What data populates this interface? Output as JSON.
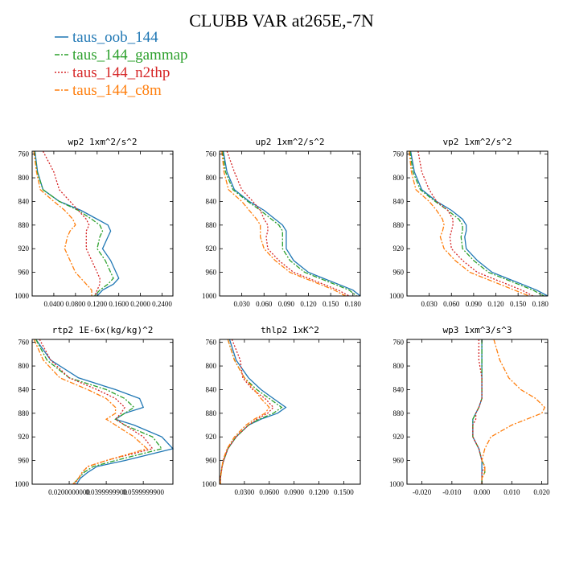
{
  "figure": {
    "title": "CLUBB VAR at265E,-7N",
    "legend": [
      {
        "name": "taus_oob_144",
        "color": "#1f77b4",
        "dash": ""
      },
      {
        "name": "taus_144_gammap",
        "color": "#2ca02c",
        "dash": "6,2,2,2"
      },
      {
        "name": "taus_144_n2thp",
        "color": "#d62728",
        "dash": "2,2"
      },
      {
        "name": "taus_144_c8m",
        "color": "#ff7f0e",
        "dash": "6,2,2,2"
      }
    ]
  },
  "chart_data": [
    {
      "type": "line",
      "title": "wp2  1xm^2/s^2",
      "xlim": [
        0.0,
        0.26
      ],
      "ylim": [
        755,
        1000
      ],
      "y_inverted": true,
      "yticks": [
        760,
        800,
        840,
        880,
        920,
        960,
        1000
      ],
      "xticks": [
        0.04,
        0.08,
        0.12,
        0.16,
        0.2,
        0.24
      ],
      "xtick_labels": [
        "0.0400",
        "0.0800",
        "0.1200",
        "0.1600",
        "0.2000",
        "0.2400"
      ],
      "y": [
        755,
        790,
        820,
        840,
        855,
        870,
        880,
        890,
        900,
        920,
        940,
        960,
        970,
        980,
        990,
        1000
      ],
      "series": [
        {
          "name": "taus_oob_144",
          "values": [
            0.005,
            0.01,
            0.02,
            0.05,
            0.09,
            0.12,
            0.14,
            0.145,
            0.14,
            0.13,
            0.145,
            0.155,
            0.16,
            0.15,
            0.13,
            0.12
          ]
        },
        {
          "name": "taus_144_gammap",
          "values": [
            0.004,
            0.009,
            0.02,
            0.05,
            0.085,
            0.11,
            0.125,
            0.13,
            0.125,
            0.12,
            0.135,
            0.145,
            0.15,
            0.14,
            0.125,
            0.115
          ]
        },
        {
          "name": "taus_144_n2thp",
          "values": [
            0.02,
            0.04,
            0.05,
            0.07,
            0.085,
            0.1,
            0.105,
            0.1,
            0.1,
            0.1,
            0.11,
            0.12,
            0.125,
            0.125,
            0.12,
            0.115
          ]
        },
        {
          "name": "taus_144_c8m",
          "values": [
            0.003,
            0.008,
            0.015,
            0.04,
            0.06,
            0.075,
            0.08,
            0.07,
            0.065,
            0.06,
            0.07,
            0.08,
            0.09,
            0.1,
            0.11,
            0.11
          ]
        }
      ]
    },
    {
      "type": "line",
      "title": "up2  1xm^2/s^2",
      "xlim": [
        0.0,
        0.19
      ],
      "ylim": [
        755,
        1000
      ],
      "y_inverted": true,
      "yticks": [
        760,
        800,
        840,
        880,
        920,
        960,
        1000
      ],
      "xticks": [
        0.03,
        0.06,
        0.09,
        0.12,
        0.15,
        0.18
      ],
      "xtick_labels": [
        "0.030",
        "0.060",
        "0.090",
        "0.120",
        "0.150",
        "0.180"
      ],
      "y": [
        755,
        790,
        820,
        840,
        855,
        870,
        880,
        890,
        900,
        920,
        940,
        960,
        970,
        980,
        990,
        1000
      ],
      "series": [
        {
          "name": "taus_oob_144",
          "values": [
            0.005,
            0.01,
            0.02,
            0.04,
            0.06,
            0.075,
            0.085,
            0.09,
            0.09,
            0.09,
            0.1,
            0.12,
            0.14,
            0.16,
            0.18,
            0.19
          ]
        },
        {
          "name": "taus_144_gammap",
          "values": [
            0.004,
            0.008,
            0.018,
            0.038,
            0.055,
            0.07,
            0.08,
            0.085,
            0.085,
            0.085,
            0.095,
            0.115,
            0.135,
            0.155,
            0.175,
            0.185
          ]
        },
        {
          "name": "taus_144_n2thp",
          "values": [
            0.01,
            0.02,
            0.03,
            0.045,
            0.055,
            0.06,
            0.065,
            0.065,
            0.063,
            0.065,
            0.08,
            0.1,
            0.12,
            0.14,
            0.16,
            0.175
          ]
        },
        {
          "name": "taus_144_c8m",
          "values": [
            0.003,
            0.006,
            0.012,
            0.03,
            0.04,
            0.05,
            0.055,
            0.055,
            0.055,
            0.06,
            0.075,
            0.095,
            0.115,
            0.135,
            0.155,
            0.17
          ]
        }
      ]
    },
    {
      "type": "line",
      "title": "vp2  1xm^2/s^2",
      "xlim": [
        0.0,
        0.19
      ],
      "ylim": [
        755,
        1000
      ],
      "y_inverted": true,
      "yticks": [
        760,
        800,
        840,
        880,
        920,
        960,
        1000
      ],
      "xticks": [
        0.03,
        0.06,
        0.09,
        0.12,
        0.15,
        0.18
      ],
      "xtick_labels": [
        "0.030",
        "0.060",
        "0.090",
        "0.120",
        "0.150",
        "0.180"
      ],
      "y": [
        755,
        790,
        820,
        840,
        855,
        870,
        880,
        890,
        900,
        920,
        940,
        960,
        970,
        980,
        990,
        1000
      ],
      "series": [
        {
          "name": "taus_oob_144",
          "values": [
            0.005,
            0.01,
            0.02,
            0.04,
            0.06,
            0.075,
            0.08,
            0.08,
            0.078,
            0.08,
            0.095,
            0.115,
            0.135,
            0.155,
            0.175,
            0.19
          ]
        },
        {
          "name": "taus_144_gammap",
          "values": [
            0.004,
            0.008,
            0.018,
            0.038,
            0.055,
            0.07,
            0.075,
            0.075,
            0.073,
            0.075,
            0.09,
            0.11,
            0.13,
            0.15,
            0.17,
            0.185
          ]
        },
        {
          "name": "taus_144_n2thp",
          "values": [
            0.015,
            0.02,
            0.03,
            0.04,
            0.055,
            0.062,
            0.062,
            0.06,
            0.058,
            0.06,
            0.075,
            0.095,
            0.115,
            0.135,
            0.155,
            0.17
          ]
        },
        {
          "name": "taus_144_c8m",
          "values": [
            0.003,
            0.006,
            0.012,
            0.03,
            0.04,
            0.048,
            0.05,
            0.048,
            0.045,
            0.05,
            0.065,
            0.085,
            0.105,
            0.125,
            0.145,
            0.165
          ]
        }
      ]
    },
    {
      "type": "line",
      "title": "rtp2  1E-6x(kg/kg)^2",
      "xlim": [
        0.0,
        0.076
      ],
      "ylim": [
        755,
        1000
      ],
      "y_inverted": true,
      "yticks": [
        760,
        800,
        840,
        880,
        920,
        960,
        1000
      ],
      "xticks": [
        0.02,
        0.04,
        0.06
      ],
      "xtick_labels": [
        "0.0200000000",
        "0.0399999900",
        "0.0599999900"
      ],
      "y": [
        755,
        790,
        820,
        840,
        855,
        870,
        880,
        890,
        900,
        920,
        940,
        960,
        970,
        980,
        990,
        1000
      ],
      "series": [
        {
          "name": "taus_oob_144",
          "values": [
            0.002,
            0.01,
            0.025,
            0.045,
            0.058,
            0.06,
            0.05,
            0.045,
            0.055,
            0.07,
            0.076,
            0.05,
            0.035,
            0.03,
            0.026,
            0.024
          ]
        },
        {
          "name": "taus_144_gammap",
          "values": [
            0.002,
            0.008,
            0.02,
            0.04,
            0.05,
            0.055,
            0.05,
            0.045,
            0.05,
            0.065,
            0.07,
            0.045,
            0.033,
            0.028,
            0.025,
            0.022
          ]
        },
        {
          "name": "taus_144_n2thp",
          "values": [
            0.004,
            0.01,
            0.02,
            0.035,
            0.045,
            0.05,
            0.048,
            0.045,
            0.05,
            0.06,
            0.065,
            0.04,
            0.03,
            0.027,
            0.025,
            0.023
          ]
        },
        {
          "name": "taus_144_c8m",
          "values": [
            0.001,
            0.006,
            0.015,
            0.03,
            0.04,
            0.045,
            0.045,
            0.04,
            0.045,
            0.055,
            0.062,
            0.04,
            0.03,
            0.027,
            0.025,
            0.022
          ]
        }
      ]
    },
    {
      "type": "line",
      "title": "thlp2  1xK^2",
      "xlim": [
        0.0,
        0.17
      ],
      "ylim": [
        755,
        1000
      ],
      "y_inverted": true,
      "yticks": [
        760,
        800,
        840,
        880,
        920,
        960,
        1000
      ],
      "xticks": [
        0.03,
        0.06,
        0.09,
        0.12,
        0.15
      ],
      "xtick_labels": [
        "0.0300",
        "0.0600",
        "0.0900",
        "0.1200",
        "0.1500"
      ],
      "y": [
        755,
        790,
        820,
        840,
        855,
        870,
        880,
        890,
        900,
        920,
        940,
        960,
        970,
        980,
        990,
        1000
      ],
      "series": [
        {
          "name": "taus_oob_144",
          "values": [
            0.012,
            0.02,
            0.035,
            0.05,
            0.065,
            0.08,
            0.07,
            0.05,
            0.035,
            0.02,
            0.01,
            0.005,
            0.003,
            0.002,
            0.001,
            0.001
          ]
        },
        {
          "name": "taus_144_gammap",
          "values": [
            0.01,
            0.018,
            0.03,
            0.045,
            0.06,
            0.075,
            0.065,
            0.048,
            0.035,
            0.02,
            0.01,
            0.005,
            0.003,
            0.002,
            0.001,
            0.001
          ]
        },
        {
          "name": "taus_144_n2thp",
          "values": [
            0.015,
            0.025,
            0.028,
            0.04,
            0.055,
            0.065,
            0.058,
            0.045,
            0.035,
            0.02,
            0.01,
            0.005,
            0.003,
            0.002,
            0.001,
            0.001
          ]
        },
        {
          "name": "taus_144_c8m",
          "values": [
            0.01,
            0.018,
            0.03,
            0.042,
            0.05,
            0.06,
            0.055,
            0.042,
            0.032,
            0.018,
            0.009,
            0.004,
            0.003,
            0.002,
            0.001,
            0.001
          ]
        }
      ]
    },
    {
      "type": "line",
      "title": "wp3  1xm^3/s^3",
      "xlim": [
        -0.025,
        0.022
      ],
      "ylim": [
        755,
        1000
      ],
      "y_inverted": true,
      "yticks": [
        760,
        800,
        840,
        880,
        920,
        960,
        1000
      ],
      "xticks": [
        -0.02,
        -0.01,
        0.0,
        0.01,
        0.02
      ],
      "xtick_labels": [
        "-0.020",
        "-0.010",
        "0.000",
        "0.010",
        "0.020"
      ],
      "y": [
        755,
        790,
        820,
        840,
        855,
        870,
        880,
        890,
        900,
        920,
        940,
        960,
        970,
        980,
        990,
        1000
      ],
      "series": [
        {
          "name": "taus_oob_144",
          "values": [
            0.0,
            0.0,
            0.0,
            0.0,
            0.0,
            -0.001,
            -0.002,
            -0.003,
            -0.003,
            -0.003,
            -0.001,
            0.0,
            0.0,
            0.0,
            0.0,
            0.0
          ]
        },
        {
          "name": "taus_144_gammap",
          "values": [
            0.0,
            0.0,
            0.0,
            0.0,
            0.0,
            -0.001,
            -0.002,
            -0.003,
            -0.003,
            -0.003,
            -0.001,
            0.0,
            0.001,
            0.001,
            0.0,
            0.0
          ]
        },
        {
          "name": "taus_144_n2thp",
          "values": [
            -0.001,
            -0.001,
            0.0,
            0.0,
            0.0,
            -0.001,
            -0.002,
            -0.002,
            -0.003,
            -0.003,
            -0.001,
            0.0,
            0.001,
            0.0,
            0.0,
            0.0
          ]
        },
        {
          "name": "taus_144_c8m",
          "values": [
            0.004,
            0.006,
            0.009,
            0.013,
            0.018,
            0.021,
            0.02,
            0.015,
            0.01,
            0.003,
            0.001,
            0.0,
            0.001,
            0.001,
            0.0,
            0.0
          ]
        }
      ]
    }
  ]
}
